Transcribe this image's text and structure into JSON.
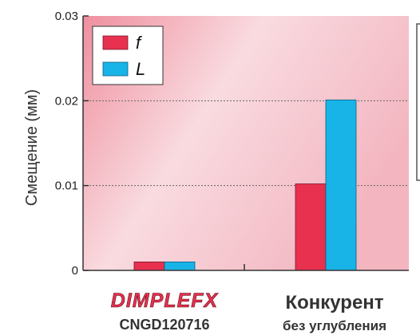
{
  "chart_data": {
    "type": "bar",
    "ylabel": "Смещение (мм)",
    "ylim": [
      0,
      0.03
    ],
    "yticks": [
      {
        "value": 0,
        "label": "0"
      },
      {
        "value": 0.01,
        "label": "0.01"
      },
      {
        "value": 0.02,
        "label": "0.02"
      },
      {
        "value": 0.03,
        "label": "0.03"
      }
    ],
    "categories": [
      {
        "brand": "DIMPLEFX",
        "label": "CNGD120716"
      },
      {
        "title": "Конкурент",
        "label": "без углубления"
      }
    ],
    "series": [
      {
        "name": "f",
        "color": "#e8304f",
        "values": [
          0.001,
          0.0102
        ]
      },
      {
        "name": "L",
        "color": "#18b4e8",
        "values": [
          0.001,
          0.0201
        ]
      }
    ],
    "grid": true,
    "legend_position": "top-left"
  }
}
